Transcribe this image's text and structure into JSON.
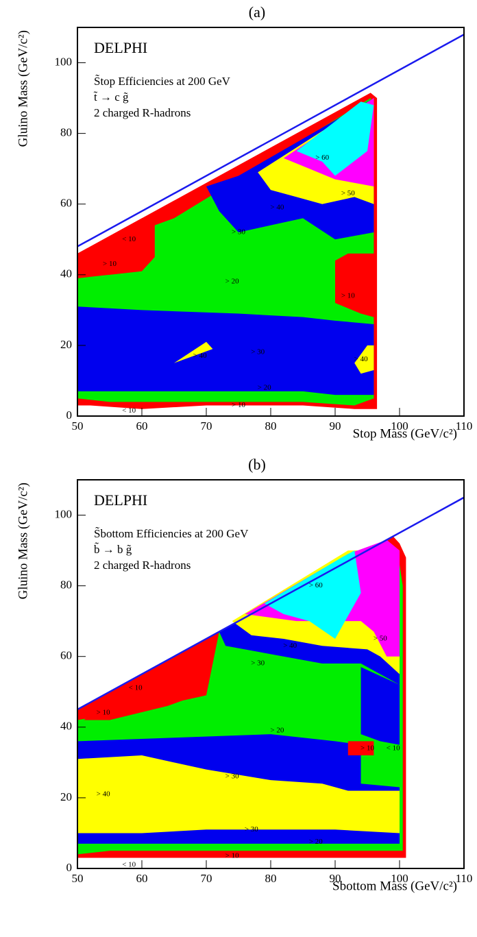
{
  "chart_data": [
    {
      "type": "contour",
      "panel_label": "(a)",
      "title": "DELPHI",
      "lines": [
        "S̃top Efficiencies at 200 GeV",
        "t̃ → c g̃",
        "2 charged R-hadrons"
      ],
      "x_label": "Stop Mass (GeV/c²)",
      "y_label": "Gluino Mass (GeV/c²)",
      "xlim": [
        50,
        110
      ],
      "ylim": [
        0,
        110
      ],
      "xticks": [
        50,
        60,
        70,
        80,
        90,
        100,
        110
      ],
      "yticks": [
        0,
        20,
        40,
        60,
        80,
        100
      ],
      "line": {
        "color": "#1a1aee",
        "x": [
          50,
          110
        ],
        "y": [
          48,
          108
        ]
      },
      "regions": [
        {
          "color": "#ff0000",
          "points": [
            [
              50,
              3
            ],
            [
              50,
              46
            ],
            [
              95.5,
              91.5
            ],
            [
              96.5,
              90
            ],
            [
              96.5,
              2
            ],
            [
              93,
              2
            ],
            [
              85,
              3
            ],
            [
              70,
              3
            ],
            [
              60,
              2
            ],
            [
              52,
              3
            ]
          ]
        },
        {
          "color": "#00ee00",
          "points": [
            [
              50,
              5
            ],
            [
              50,
              39
            ],
            [
              60,
              41
            ],
            [
              62,
              54
            ],
            [
              65,
              56
            ],
            [
              95.5,
              90
            ],
            [
              96,
              86
            ],
            [
              96,
              46
            ],
            [
              92,
              46
            ],
            [
              90,
              44
            ],
            [
              90,
              32
            ],
            [
              94,
              29
            ],
            [
              96,
              28
            ],
            [
              96,
              5
            ],
            [
              93,
              3
            ],
            [
              85,
              4
            ],
            [
              75,
              4
            ],
            [
              65,
              4
            ],
            [
              55,
              4
            ]
          ]
        },
        {
          "color": "#ff0000",
          "points": [
            [
              50,
              40
            ],
            [
              50,
              46
            ],
            [
              60,
              56
            ],
            [
              62,
              56
            ],
            [
              62,
              45
            ],
            [
              60,
              41
            ],
            [
              55,
              40
            ]
          ]
        },
        {
          "color": "#0000ee",
          "points": [
            [
              50,
              7
            ],
            [
              50,
              31
            ],
            [
              60,
              30
            ],
            [
              75,
              29
            ],
            [
              85,
              28
            ],
            [
              90,
              27
            ],
            [
              96,
              26
            ],
            [
              96,
              6
            ],
            [
              90,
              6
            ],
            [
              85,
              7
            ],
            [
              75,
              7
            ],
            [
              65,
              7
            ],
            [
              55,
              7
            ]
          ]
        },
        {
          "color": "#0000ee",
          "points": [
            [
              70,
              65
            ],
            [
              75,
              68
            ],
            [
              96,
              90
            ],
            [
              96,
              52
            ],
            [
              90,
              50
            ],
            [
              85,
              56
            ],
            [
              80,
              54
            ],
            [
              75,
              52
            ],
            [
              72,
              58
            ]
          ]
        },
        {
          "color": "#ffff00",
          "points": [
            [
              78,
              69
            ],
            [
              96,
              90
            ],
            [
              96,
              60
            ],
            [
              93,
              62
            ],
            [
              88,
              60
            ],
            [
              84,
              62
            ],
            [
              80,
              64
            ]
          ]
        },
        {
          "color": "#ff00ff",
          "points": [
            [
              82,
              73
            ],
            [
              96,
              90
            ],
            [
              96,
              65
            ],
            [
              90,
              67
            ],
            [
              86,
              70
            ]
          ]
        },
        {
          "color": "#00ffff",
          "points": [
            [
              84,
              75
            ],
            [
              94,
              89
            ],
            [
              96,
              88
            ],
            [
              95,
              75
            ],
            [
              90,
              68
            ],
            [
              88,
              72
            ]
          ]
        },
        {
          "color": "#ffff00",
          "points": [
            [
              65,
              15
            ],
            [
              70,
              21
            ],
            [
              71,
              19
            ]
          ]
        },
        {
          "color": "#ffff00",
          "points": [
            [
              93,
              15
            ],
            [
              95,
              20
            ],
            [
              96,
              20
            ],
            [
              96,
              13
            ],
            [
              94,
              12
            ]
          ]
        },
        {
          "color": "#ff0000",
          "points": [
            [
              91,
              41
            ],
            [
              94,
              45
            ],
            [
              96,
              46
            ],
            [
              96,
              30
            ],
            [
              94,
              29
            ],
            [
              91,
              32
            ]
          ]
        }
      ],
      "annotations": [
        {
          "text": "> 60",
          "x": 88,
          "y": 73
        },
        {
          "text": "> 50",
          "x": 92,
          "y": 63
        },
        {
          "text": "> 40",
          "x": 81,
          "y": 59
        },
        {
          "text": "> 30",
          "x": 75,
          "y": 52
        },
        {
          "text": "< 10",
          "x": 58,
          "y": 50
        },
        {
          "text": "> 10",
          "x": 55,
          "y": 43
        },
        {
          "text": "> 20",
          "x": 74,
          "y": 38
        },
        {
          "text": "> 10",
          "x": 92,
          "y": 34
        },
        {
          "text": "> 40",
          "x": 69,
          "y": 17
        },
        {
          "text": "> 30",
          "x": 78,
          "y": 18
        },
        {
          "text": "> 40",
          "x": 94,
          "y": 16
        },
        {
          "text": "> 20",
          "x": 79,
          "y": 8
        },
        {
          "text": "> 10",
          "x": 75,
          "y": 3
        },
        {
          "text": "< 10",
          "x": 58,
          "y": 1.5
        }
      ]
    },
    {
      "type": "contour",
      "panel_label": "(b)",
      "title": "DELPHI",
      "lines": [
        "S̃bottom Efficiencies at 200 GeV",
        "b̃ → b g̃",
        "2 charged R-hadrons"
      ],
      "x_label": "Sbottom Mass (GeV/c²)",
      "y_label": "Gluino Mass (GeV/c²)",
      "xlim": [
        50,
        110
      ],
      "ylim": [
        0,
        110
      ],
      "xticks": [
        50,
        60,
        70,
        80,
        90,
        100,
        110
      ],
      "yticks": [
        0,
        20,
        40,
        60,
        80,
        100
      ],
      "line": {
        "color": "#1a1aee",
        "x": [
          50,
          110
        ],
        "y": [
          45,
          105
        ]
      },
      "regions": [
        {
          "color": "#ff0000",
          "points": [
            [
              50,
              3
            ],
            [
              50,
              45
            ],
            [
              94,
              89
            ],
            [
              99,
              94
            ],
            [
              100,
              92
            ],
            [
              101,
              88
            ],
            [
              101,
              3
            ],
            [
              95,
              3
            ],
            [
              85,
              3
            ],
            [
              70,
              3
            ],
            [
              60,
              3
            ]
          ]
        },
        {
          "color": "#00ee00",
          "points": [
            [
              50,
              4
            ],
            [
              50,
              42
            ],
            [
              60,
              45
            ],
            [
              70,
              49
            ],
            [
              72,
              67
            ],
            [
              90,
              86
            ],
            [
              100,
              86
            ],
            [
              100.5,
              80
            ],
            [
              100.5,
              5
            ],
            [
              90,
              5
            ],
            [
              70,
              5
            ],
            [
              55,
              5
            ]
          ]
        },
        {
          "color": "#ff0000",
          "points": [
            [
              51,
              42
            ],
            [
              58,
              52
            ],
            [
              62,
              54
            ],
            [
              70,
              60
            ],
            [
              70,
              50
            ],
            [
              64,
              46
            ],
            [
              55,
              42
            ]
          ]
        },
        {
          "color": "#0000ee",
          "points": [
            [
              50,
              7
            ],
            [
              50,
              36
            ],
            [
              65,
              37
            ],
            [
              80,
              38
            ],
            [
              90,
              36
            ],
            [
              94,
              35
            ],
            [
              94,
              24
            ],
            [
              100,
              23
            ],
            [
              100,
              7
            ]
          ]
        },
        {
          "color": "#ffff00",
          "points": [
            [
              50,
              10
            ],
            [
              50,
              31
            ],
            [
              60,
              32
            ],
            [
              70,
              28
            ],
            [
              80,
              25
            ],
            [
              88,
              24
            ],
            [
              92,
              22
            ],
            [
              100,
              22
            ],
            [
              100,
              10
            ],
            [
              90,
              11
            ],
            [
              80,
              11
            ],
            [
              70,
              11
            ],
            [
              60,
              10
            ]
          ]
        },
        {
          "color": "#0000ee",
          "points": [
            [
              72,
              67
            ],
            [
              93,
              90
            ],
            [
              100,
              90
            ],
            [
              100,
              52
            ],
            [
              96,
              56
            ],
            [
              94,
              58
            ],
            [
              88,
              58
            ],
            [
              82,
              60
            ],
            [
              76,
              62
            ],
            [
              73,
              63
            ]
          ]
        },
        {
          "color": "#0000ee",
          "points": [
            [
              94,
              38
            ],
            [
              94,
              57
            ],
            [
              100,
              52
            ],
            [
              100,
              35
            ],
            [
              97,
              36
            ]
          ]
        },
        {
          "color": "#ffff00",
          "points": [
            [
              74,
              70
            ],
            [
              92,
              90
            ],
            [
              100,
              90
            ],
            [
              100,
              55
            ],
            [
              97,
              60
            ],
            [
              95,
              62
            ],
            [
              88,
              63
            ],
            [
              82,
              65
            ],
            [
              77,
              66
            ]
          ]
        },
        {
          "color": "#ff00ff",
          "points": [
            [
              76,
              72
            ],
            [
              92,
              89
            ],
            [
              98,
              93
            ],
            [
              100,
              90
            ],
            [
              100,
              60
            ],
            [
              98,
              60
            ],
            [
              96,
              67
            ],
            [
              94,
              70
            ],
            [
              88,
              70
            ],
            [
              84,
              70
            ]
          ]
        },
        {
          "color": "#00ffff",
          "points": [
            [
              79,
              75
            ],
            [
              91,
              88
            ],
            [
              93,
              90
            ],
            [
              94,
              78
            ],
            [
              90,
              65
            ],
            [
              86,
              70
            ],
            [
              82,
              72
            ]
          ]
        },
        {
          "color": "#ff0000",
          "points": [
            [
              92,
              32
            ],
            [
              92,
              36
            ],
            [
              96,
              36
            ],
            [
              96,
              32
            ]
          ]
        }
      ],
      "annotations": [
        {
          "text": "> 60",
          "x": 87,
          "y": 80
        },
        {
          "text": "> 50",
          "x": 97,
          "y": 65
        },
        {
          "text": "> 40",
          "x": 83,
          "y": 63
        },
        {
          "text": "> 30",
          "x": 78,
          "y": 58
        },
        {
          "text": "< 10",
          "x": 59,
          "y": 51
        },
        {
          "text": "> 10",
          "x": 54,
          "y": 44
        },
        {
          "text": "> 20",
          "x": 81,
          "y": 39
        },
        {
          "text": "> 10",
          "x": 95,
          "y": 34
        },
        {
          "text": "< 10",
          "x": 99,
          "y": 34
        },
        {
          "text": "> 30",
          "x": 74,
          "y": 26
        },
        {
          "text": "> 40",
          "x": 54,
          "y": 21
        },
        {
          "text": "> 30",
          "x": 77,
          "y": 11
        },
        {
          "text": "> 20",
          "x": 87,
          "y": 7.5
        },
        {
          "text": "> 10",
          "x": 74,
          "y": 3.5
        },
        {
          "text": "< 10",
          "x": 58,
          "y": 1
        }
      ]
    }
  ]
}
